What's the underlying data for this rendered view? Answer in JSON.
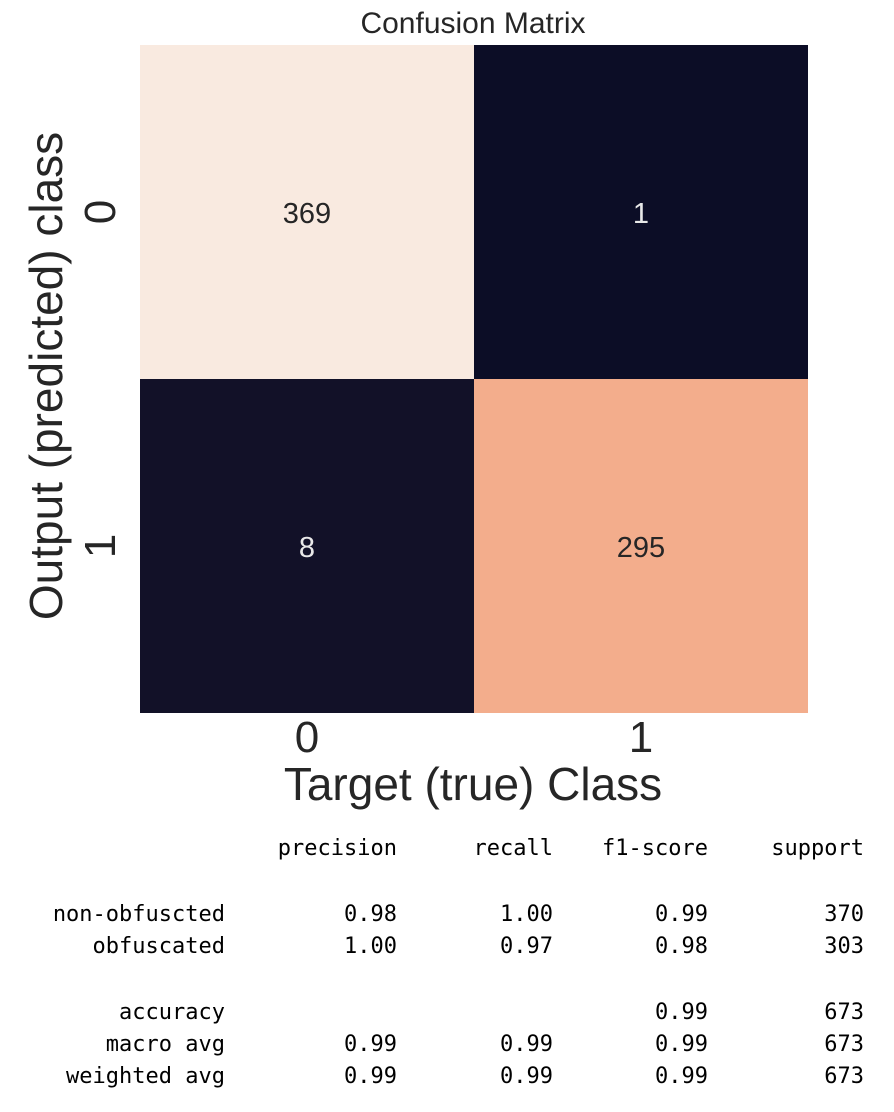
{
  "chart_data": {
    "type": "heatmap",
    "title": "Confusion Matrix",
    "xlabel": "Target (true) Class",
    "ylabel": "Output (predicted) class",
    "x_categories": [
      "0",
      "1"
    ],
    "y_categories": [
      "0",
      "1"
    ],
    "values": [
      [
        369,
        1
      ],
      [
        8,
        295
      ]
    ],
    "colorbar": false,
    "colors": {
      "low": "#0c0d26",
      "mid": "#f19e77",
      "high": "#f9eae0"
    }
  },
  "report": {
    "columns": [
      "precision",
      "recall",
      "f1-score",
      "support"
    ],
    "class_rows": [
      {
        "label": "non-obfuscted",
        "precision": "0.98",
        "recall": "1.00",
        "f1": "0.99",
        "support": "370"
      },
      {
        "label": "obfuscated",
        "precision": "1.00",
        "recall": "0.97",
        "f1": "0.98",
        "support": "303"
      }
    ],
    "summary_rows": [
      {
        "label": "accuracy",
        "precision": "",
        "recall": "",
        "f1": "0.99",
        "support": "673"
      },
      {
        "label": "macro avg",
        "precision": "0.99",
        "recall": "0.99",
        "f1": "0.99",
        "support": "673"
      },
      {
        "label": "weighted avg",
        "precision": "0.99",
        "recall": "0.99",
        "f1": "0.99",
        "support": "673"
      }
    ]
  }
}
